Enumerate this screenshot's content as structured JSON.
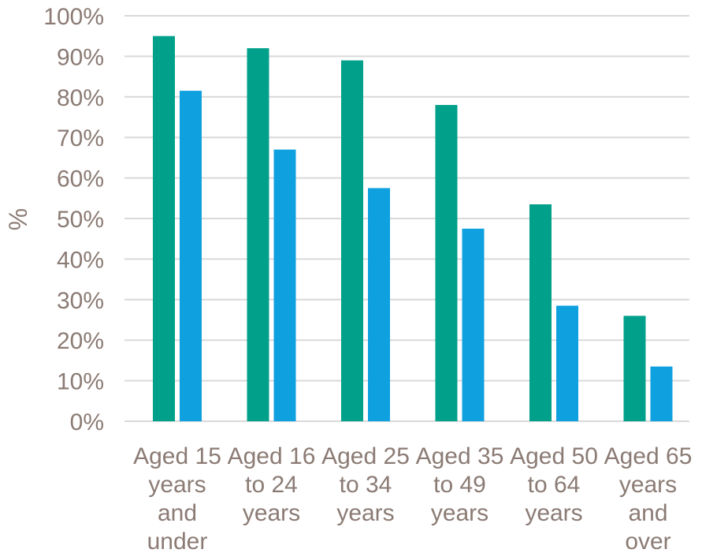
{
  "chart_data": {
    "type": "bar",
    "title": "",
    "xlabel": "",
    "ylabel": "%",
    "ylim": [
      0,
      100
    ],
    "y_ticks": [
      "0%",
      "10%",
      "20%",
      "30%",
      "40%",
      "50%",
      "60%",
      "70%",
      "80%",
      "90%",
      "100%"
    ],
    "grid": true,
    "categories": [
      [
        "Aged 15",
        "years",
        "and",
        "under"
      ],
      [
        "Aged 16",
        "to 24",
        "years"
      ],
      [
        "Aged 25",
        "to 34",
        "years"
      ],
      [
        "Aged 35",
        "to 49",
        "years"
      ],
      [
        "Aged 50",
        "to 64",
        "years"
      ],
      [
        "Aged 65",
        "years",
        "and",
        "over"
      ]
    ],
    "series": [
      {
        "color": "#00a08a",
        "values": [
          95,
          92,
          89,
          78,
          53.5,
          26
        ]
      },
      {
        "color": "#0fa0e0",
        "values": [
          81.5,
          67,
          57.5,
          47.5,
          28.5,
          13.5
        ]
      }
    ]
  }
}
